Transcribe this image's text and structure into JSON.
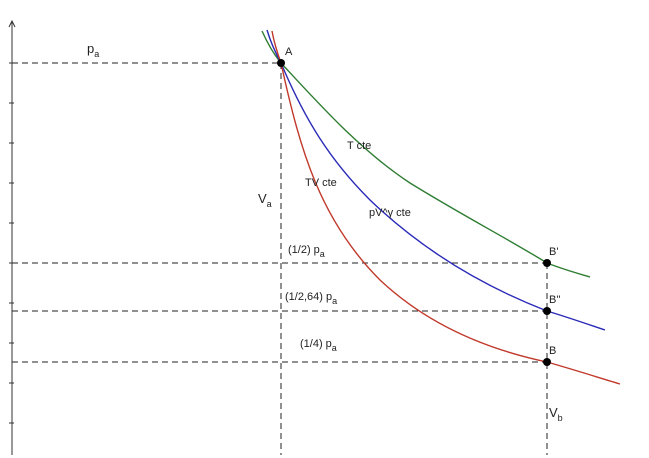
{
  "points": {
    "A": "A",
    "B_prime": "B'",
    "B_double_prime": "B''",
    "B": "B"
  },
  "pressure_labels": {
    "pa": {
      "base": "p",
      "sub": "a"
    },
    "half_pa": {
      "base": "(1/2) p",
      "sub": "a"
    },
    "half264_pa": {
      "base": "(1/2,64) p",
      "sub": "a"
    },
    "quarter_pa": {
      "base": "(1/4) p",
      "sub": "a"
    }
  },
  "volume_labels": {
    "va": {
      "base": "V",
      "sub": "a"
    },
    "vb": {
      "base": "V",
      "sub": "b"
    }
  },
  "curves": [
    {
      "label": "T cte",
      "color": "#2e7d32"
    },
    {
      "label": "pV^γ cte",
      "color": "#2a2ab8"
    },
    {
      "label": "TV cte",
      "color": "#c0392b"
    }
  ]
}
